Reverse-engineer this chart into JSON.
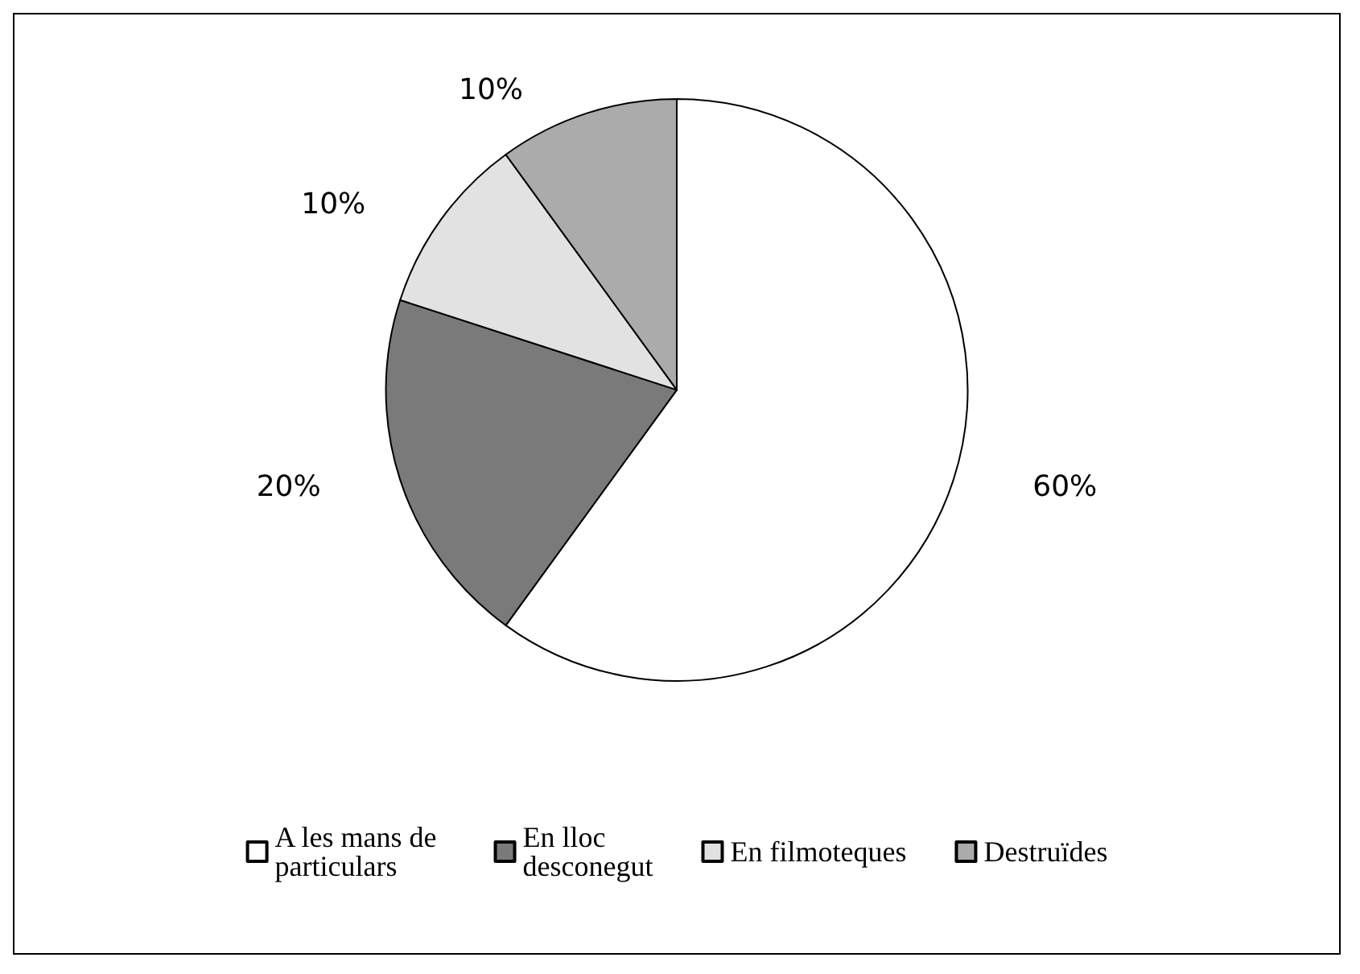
{
  "chart_data": {
    "type": "pie",
    "categories": [
      "A les mans de particulars",
      "En lloc desconegut",
      "En filmoteques",
      "Destruïdes"
    ],
    "values": [
      60,
      20,
      10,
      10
    ],
    "colors": [
      "#ffffff",
      "#7a7a7a",
      "#e2e2e2",
      "#ababab"
    ],
    "value_labels": [
      "60%",
      "20%",
      "10%",
      "10%"
    ],
    "legend": "bottom"
  }
}
